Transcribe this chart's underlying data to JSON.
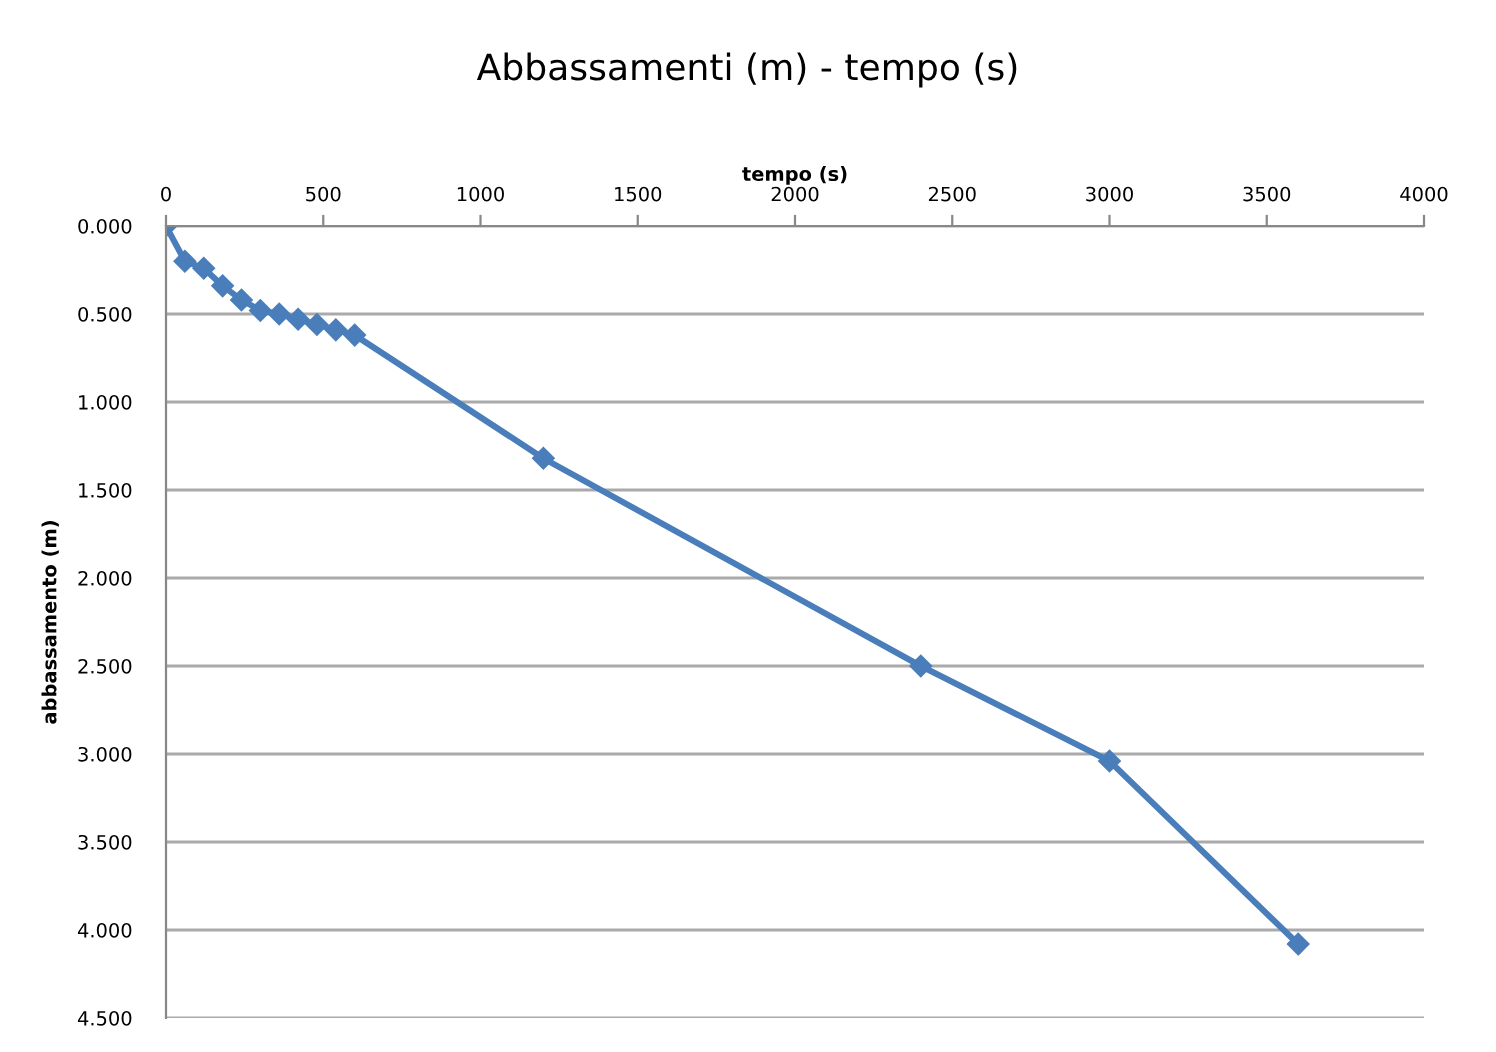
{
  "chart_data": {
    "type": "line",
    "title": "Abbassamenti (m) - tempo (s)",
    "xlabel": "tempo (s)",
    "ylabel": "abbassamento (m)",
    "x": [
      0,
      60,
      120,
      180,
      240,
      300,
      360,
      420,
      480,
      540,
      600,
      1200,
      2400,
      3000,
      3600
    ],
    "series": [
      {
        "color": "#4a7ebb",
        "values": [
          0,
          0.2,
          0.24,
          0.34,
          0.42,
          0.48,
          0.5,
          0.53,
          0.56,
          0.59,
          0.62,
          1.32,
          2.5,
          3.04,
          4.08
        ]
      }
    ],
    "xlim": [
      0,
      4000
    ],
    "xticks": [
      0,
      500,
      1000,
      1500,
      2000,
      2500,
      3000,
      3500,
      4000
    ],
    "ylim": [
      4.5,
      0
    ],
    "yticks": [
      {
        "value": 0,
        "label": "0.000"
      },
      {
        "value": 0.5,
        "label": "0.500"
      },
      {
        "value": 1,
        "label": "1.000"
      },
      {
        "value": 1.5,
        "label": "1.500"
      },
      {
        "value": 2,
        "label": "2.000"
      },
      {
        "value": 2.5,
        "label": "2.500"
      },
      {
        "value": 3,
        "label": "3.000"
      },
      {
        "value": 3.5,
        "label": "3.500"
      },
      {
        "value": 4,
        "label": "4.000"
      },
      {
        "value": 4.5,
        "label": "4.500"
      }
    ],
    "grid": "y",
    "marker": "diamond",
    "line_style": "solid"
  }
}
